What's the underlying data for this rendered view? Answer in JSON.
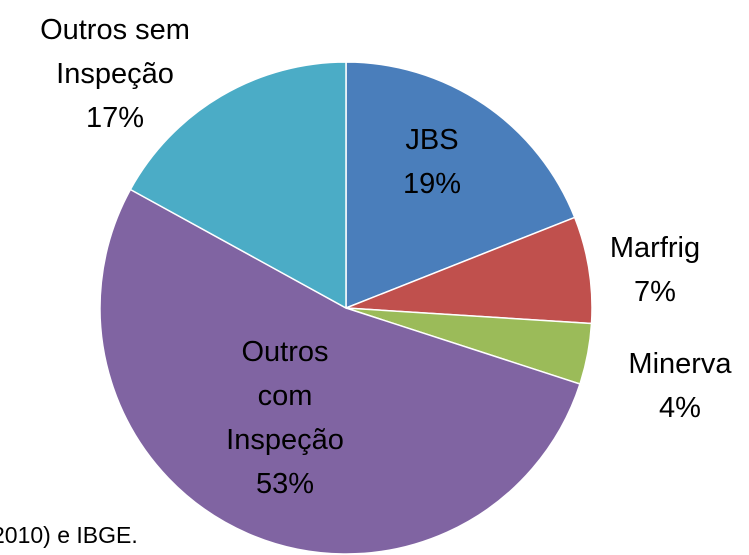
{
  "chart_data": {
    "type": "pie",
    "categories": [
      "JBS",
      "Marfrig",
      "Minerva",
      "Outros com Inspeção",
      "Outros sem Inspeção"
    ],
    "values": [
      19,
      7,
      4,
      53,
      17
    ],
    "value_labels": [
      "19%",
      "7%",
      "4%",
      "53%",
      "17%"
    ],
    "colors": [
      "#4a7ebb",
      "#c0504d",
      "#9bbb59",
      "#8064a2",
      "#4bacc6"
    ],
    "source_note": "2010) e IBGE."
  }
}
